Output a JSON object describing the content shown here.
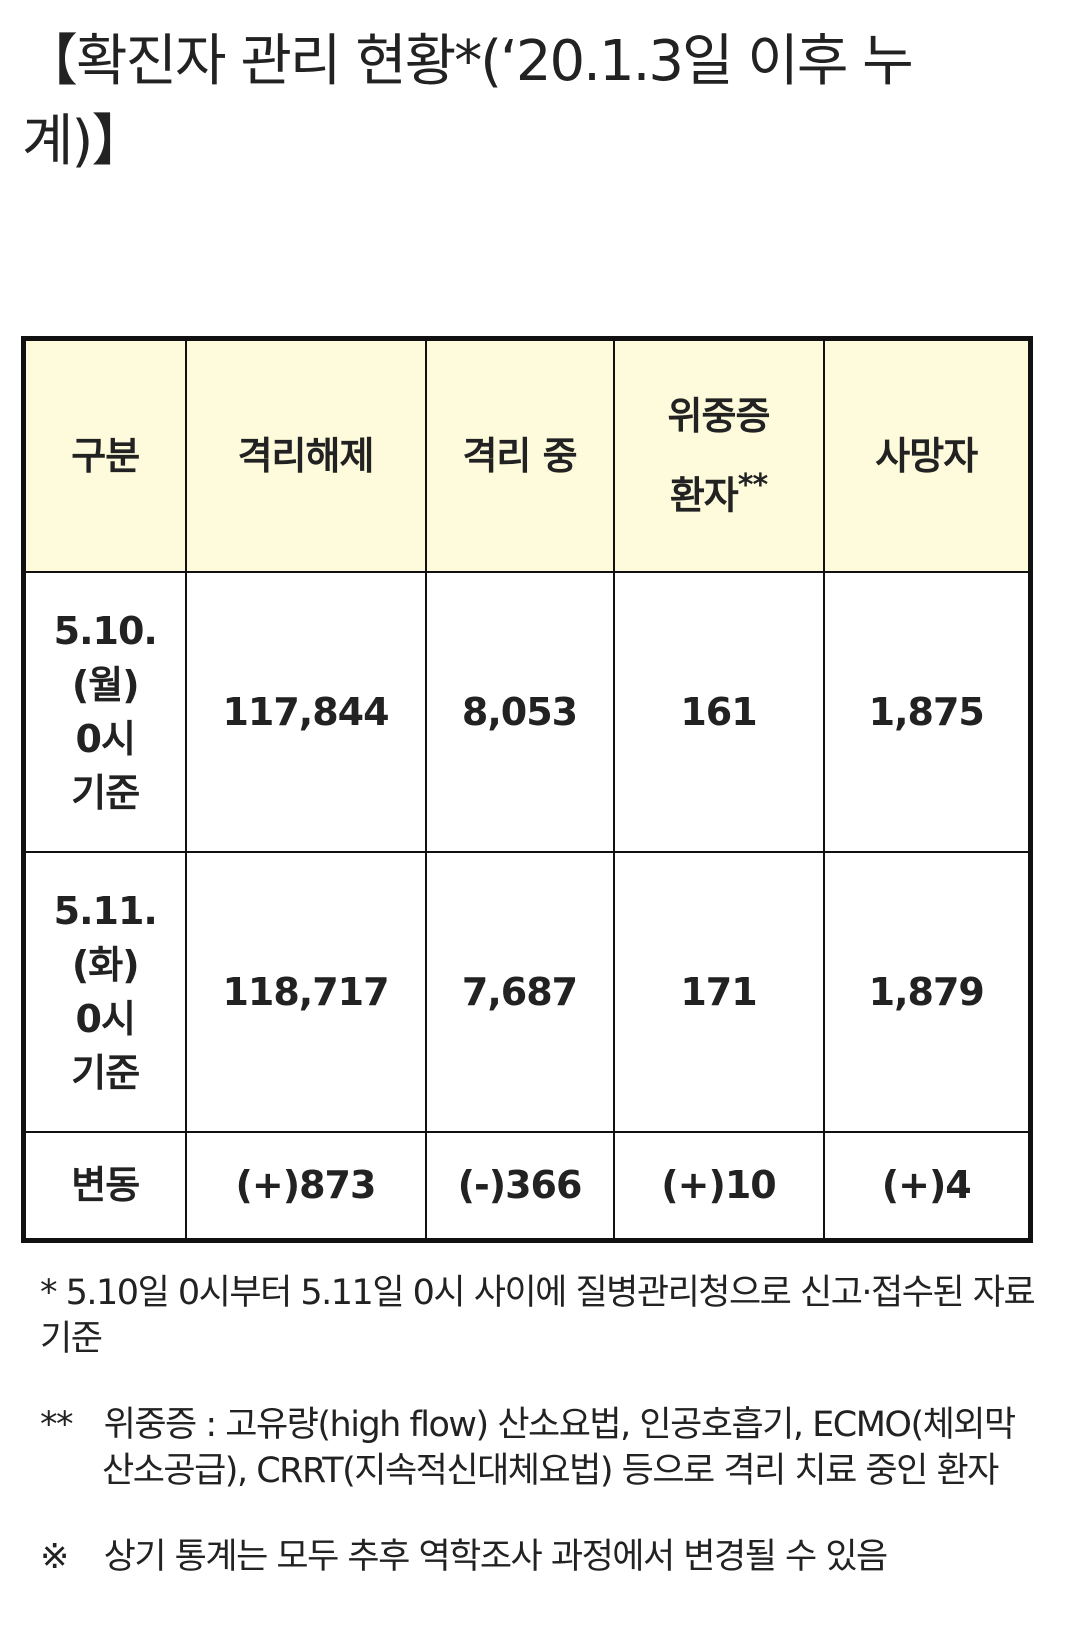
{
  "header": {
    "title": "【확진자 관리 현황*(‘20.1.3일 이후 누계)】"
  },
  "table": {
    "columns": [
      "구분",
      "격리해제",
      "격리 중",
      {
        "text": "위중증 환자",
        "mark": "**"
      },
      "사망자"
    ],
    "rows": [
      {
        "label": [
          "5.10.",
          "(월)",
          "0시",
          "기준"
        ],
        "cells": [
          "117,844",
          "8,053",
          "161",
          "1,875"
        ]
      },
      {
        "label": [
          "5.11.",
          "(화)",
          "0시",
          "기준"
        ],
        "cells": [
          "118,717",
          "7,687",
          "171",
          "1,879"
        ]
      },
      {
        "label": [
          "변동"
        ],
        "cells": [
          "(+)873",
          "(-)366",
          "(+)10",
          "(+)4"
        ]
      }
    ]
  },
  "notes": [
    {
      "mark": "*",
      "text": "5.10일 0시부터 5.11일 0시 사이에 질병관리청으로 신고·접수된 자료 기준"
    },
    {
      "mark": "**",
      "text": "위중증 : 고유량(high flow) 산소요법, 인공호흡기, ECMO(체외막산소공급), CRRT(지속적신대체요법) 등으로 격리 치료 중인 환자"
    },
    {
      "mark": "※",
      "text": "상기 통계는 모두 추후 역학조사 과정에서 변경될 수 있음"
    }
  ]
}
